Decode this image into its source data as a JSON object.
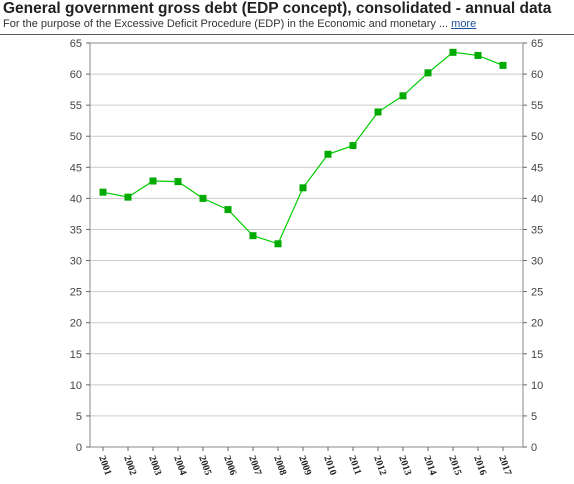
{
  "header": {
    "title": "General government gross debt (EDP concept), consolidated - annual data",
    "subtitle": "For the purpose of the Excessive Deficit Procedure (EDP) in the Economic and monetary ...",
    "more_label": "more"
  },
  "chart_data": {
    "type": "line",
    "x": [
      "2001",
      "2002",
      "2003",
      "2004",
      "2005",
      "2006",
      "2007",
      "2008",
      "2009",
      "2010",
      "2011",
      "2012",
      "2013",
      "2014",
      "2015",
      "2016",
      "2017"
    ],
    "series": [
      {
        "values": [
          41.0,
          40.2,
          42.8,
          42.7,
          40.0,
          38.2,
          34.0,
          32.7,
          41.7,
          47.1,
          48.5,
          53.9,
          56.5,
          60.2,
          63.5,
          63.0,
          61.4
        ]
      }
    ],
    "ylim": [
      0,
      65
    ],
    "yticks": [
      0,
      5,
      10,
      15,
      20,
      25,
      30,
      35,
      40,
      45,
      50,
      55,
      60,
      65
    ],
    "grid": true,
    "line_color": "#00cc00",
    "marker_color": "#00aa00",
    "grid_color": "#cccccc"
  }
}
